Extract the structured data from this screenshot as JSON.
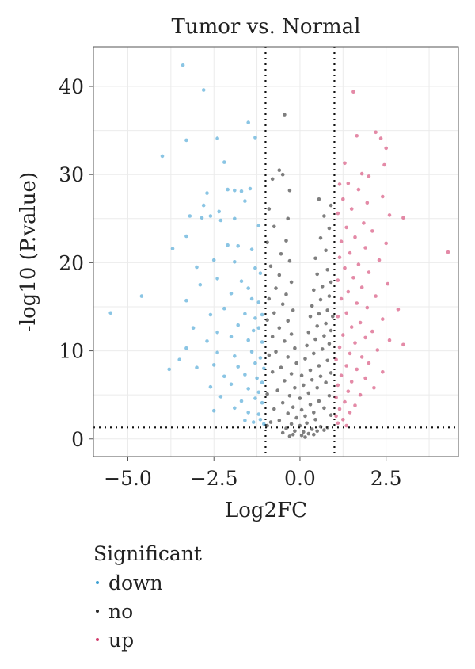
{
  "chart_data": {
    "type": "scatter",
    "title": "Tumor vs. Normal",
    "xlabel": "Log2FC",
    "ylabel": "-log10 (P.value)",
    "xlim": [
      -6.0,
      4.6
    ],
    "ylim": [
      -2.0,
      44.5
    ],
    "x_ticks": [
      -5.0,
      -2.5,
      0.0,
      2.5
    ],
    "x_tick_labels": [
      "−5.0",
      "−2.5",
      "0.0",
      "2.5"
    ],
    "y_ticks": [
      0,
      10,
      20,
      30,
      40
    ],
    "y_tick_labels": [
      "0",
      "10",
      "20",
      "30",
      "40"
    ],
    "grid": true,
    "thresholds": {
      "log2fc": [
        -1,
        1
      ],
      "neg_log10_p": 1.3
    },
    "legend": {
      "title": "Significant",
      "placement": "bottom-left",
      "entries": [
        {
          "label": "down",
          "color": "#3c9fd2"
        },
        {
          "label": "no",
          "color": "#2a2a2a"
        },
        {
          "label": "up",
          "color": "#d23c6c"
        }
      ]
    },
    "series": [
      {
        "name": "down",
        "color": "#3c9fd2",
        "points": [
          [
            -3.4,
            42.4
          ],
          [
            -2.8,
            39.6
          ],
          [
            -1.5,
            35.9
          ],
          [
            -2.4,
            34.1
          ],
          [
            -3.3,
            33.9
          ],
          [
            -1.3,
            34.2
          ],
          [
            -4.0,
            32.1
          ],
          [
            -2.2,
            31.4
          ],
          [
            -1.9,
            28.2
          ],
          [
            -2.1,
            28.3
          ],
          [
            -1.7,
            28.1
          ],
          [
            -1.45,
            28.4
          ],
          [
            -2.7,
            27.9
          ],
          [
            -1.6,
            27.0
          ],
          [
            -2.8,
            26.5
          ],
          [
            -2.35,
            25.8
          ],
          [
            -1.9,
            25.0
          ],
          [
            -2.85,
            25.1
          ],
          [
            -3.2,
            25.3
          ],
          [
            -2.6,
            25.3
          ],
          [
            -2.3,
            24.8
          ],
          [
            -1.2,
            24.2
          ],
          [
            -3.3,
            23.0
          ],
          [
            -3.7,
            21.6
          ],
          [
            -2.1,
            22.0
          ],
          [
            -1.8,
            21.9
          ],
          [
            -1.4,
            21.5
          ],
          [
            -3.0,
            19.5
          ],
          [
            -2.5,
            20.3
          ],
          [
            -1.9,
            20.1
          ],
          [
            -1.3,
            19.4
          ],
          [
            -1.15,
            18.8
          ],
          [
            -2.9,
            17.5
          ],
          [
            -2.4,
            18.2
          ],
          [
            -1.7,
            17.9
          ],
          [
            -1.5,
            17.1
          ],
          [
            -4.6,
            16.2
          ],
          [
            -3.3,
            15.7
          ],
          [
            -2.0,
            16.5
          ],
          [
            -1.4,
            15.9
          ],
          [
            -1.2,
            15.5
          ],
          [
            -5.5,
            14.3
          ],
          [
            -2.6,
            14.1
          ],
          [
            -2.2,
            14.8
          ],
          [
            -1.6,
            14.2
          ],
          [
            -1.3,
            13.7
          ],
          [
            -1.1,
            14.1
          ],
          [
            -3.1,
            12.6
          ],
          [
            -2.4,
            12.1
          ],
          [
            -1.8,
            12.9
          ],
          [
            -1.35,
            12.3
          ],
          [
            -1.2,
            12.6
          ],
          [
            -3.3,
            10.3
          ],
          [
            -2.7,
            11.1
          ],
          [
            -2.0,
            11.6
          ],
          [
            -1.5,
            11.2
          ],
          [
            -1.1,
            11.0
          ],
          [
            -3.5,
            9.0
          ],
          [
            -2.4,
            9.8
          ],
          [
            -1.9,
            9.4
          ],
          [
            -1.4,
            9.9
          ],
          [
            -1.15,
            9.2
          ],
          [
            -3.8,
            7.9
          ],
          [
            -3.0,
            8.1
          ],
          [
            -2.5,
            8.4
          ],
          [
            -1.8,
            8.2
          ],
          [
            -1.3,
            8.6
          ],
          [
            -1.05,
            8.0
          ],
          [
            -2.2,
            7.1
          ],
          [
            -1.6,
            7.3
          ],
          [
            -1.25,
            6.9
          ],
          [
            -1.1,
            6.4
          ],
          [
            -2.6,
            5.9
          ],
          [
            -2.0,
            6.2
          ],
          [
            -1.5,
            5.7
          ],
          [
            -1.2,
            5.3
          ],
          [
            -2.3,
            4.8
          ],
          [
            -1.7,
            4.3
          ],
          [
            -1.3,
            4.6
          ],
          [
            -1.1,
            4.1
          ],
          [
            -2.5,
            3.2
          ],
          [
            -1.9,
            3.5
          ],
          [
            -1.5,
            3.0
          ],
          [
            -1.2,
            2.8
          ],
          [
            -1.6,
            2.1
          ],
          [
            -1.15,
            2.2
          ],
          [
            -1.35,
            1.9
          ],
          [
            -1.05,
            1.7
          ]
        ]
      },
      {
        "name": "no",
        "color": "#2a2a2a",
        "points": [
          [
            -0.45,
            36.8
          ],
          [
            -0.6,
            30.5
          ],
          [
            -0.5,
            30.0
          ],
          [
            -0.8,
            29.5
          ],
          [
            -0.3,
            28.2
          ],
          [
            0.55,
            27.2
          ],
          [
            -0.9,
            26.1
          ],
          [
            -0.35,
            25.0
          ],
          [
            0.7,
            25.3
          ],
          [
            0.9,
            26.5
          ],
          [
            -0.75,
            24.1
          ],
          [
            -0.4,
            22.5
          ],
          [
            0.6,
            22.8
          ],
          [
            0.85,
            23.9
          ],
          [
            -0.95,
            22.3
          ],
          [
            -0.55,
            21.0
          ],
          [
            -0.3,
            20.2
          ],
          [
            0.45,
            20.5
          ],
          [
            0.75,
            21.4
          ],
          [
            -0.85,
            19.6
          ],
          [
            -0.6,
            18.6
          ],
          [
            -0.25,
            17.8
          ],
          [
            0.5,
            18.7
          ],
          [
            0.8,
            19.2
          ],
          [
            -0.7,
            17.1
          ],
          [
            -0.4,
            16.4
          ],
          [
            0.4,
            16.9
          ],
          [
            0.65,
            17.3
          ],
          [
            0.9,
            17.8
          ],
          [
            -0.9,
            15.9
          ],
          [
            -0.5,
            15.3
          ],
          [
            -0.2,
            14.6
          ],
          [
            0.35,
            15.1
          ],
          [
            0.6,
            15.8
          ],
          [
            0.85,
            16.2
          ],
          [
            -0.75,
            14.3
          ],
          [
            -0.35,
            13.4
          ],
          [
            0.3,
            13.9
          ],
          [
            0.55,
            14.2
          ],
          [
            0.8,
            14.6
          ],
          [
            -0.95,
            13.5
          ],
          [
            -0.6,
            12.6
          ],
          [
            -0.25,
            11.9
          ],
          [
            0.25,
            12.1
          ],
          [
            0.5,
            12.8
          ],
          [
            0.75,
            13.1
          ],
          [
            0.95,
            13.9
          ],
          [
            -0.8,
            11.6
          ],
          [
            -0.45,
            11.1
          ],
          [
            -0.15,
            10.3
          ],
          [
            0.2,
            10.6
          ],
          [
            0.45,
            11.3
          ],
          [
            0.7,
            11.7
          ],
          [
            0.9,
            12.3
          ],
          [
            -0.7,
            9.9
          ],
          [
            -0.35,
            9.3
          ],
          [
            -0.1,
            8.6
          ],
          [
            0.15,
            9.1
          ],
          [
            0.4,
            9.7
          ],
          [
            0.65,
            10.2
          ],
          [
            0.85,
            10.8
          ],
          [
            -0.9,
            9.5
          ],
          [
            -0.55,
            8.1
          ],
          [
            -0.25,
            7.4
          ],
          [
            0.05,
            7.2
          ],
          [
            0.3,
            7.8
          ],
          [
            0.55,
            8.3
          ],
          [
            0.8,
            8.9
          ],
          [
            -0.8,
            7.6
          ],
          [
            -0.45,
            6.6
          ],
          [
            -0.15,
            5.8
          ],
          [
            0.1,
            6.1
          ],
          [
            0.35,
            6.7
          ],
          [
            0.6,
            7.1
          ],
          [
            0.9,
            7.5
          ],
          [
            -0.65,
            5.5
          ],
          [
            -0.3,
            4.9
          ],
          [
            0.0,
            4.6
          ],
          [
            0.25,
            5.2
          ],
          [
            0.5,
            5.8
          ],
          [
            0.75,
            6.4
          ],
          [
            -0.95,
            5.1
          ],
          [
            -0.5,
            4.1
          ],
          [
            -0.2,
            3.6
          ],
          [
            0.05,
            3.3
          ],
          [
            0.3,
            3.9
          ],
          [
            0.55,
            4.3
          ],
          [
            0.85,
            4.9
          ],
          [
            -0.75,
            3.4
          ],
          [
            -0.35,
            2.9
          ],
          [
            -0.1,
            2.4
          ],
          [
            0.15,
            2.6
          ],
          [
            0.4,
            3.0
          ],
          [
            0.7,
            3.5
          ],
          [
            -0.6,
            2.1
          ],
          [
            -0.25,
            1.7
          ],
          [
            0.0,
            1.5
          ],
          [
            0.2,
            1.8
          ],
          [
            0.45,
            2.2
          ],
          [
            0.9,
            2.7
          ],
          [
            -0.85,
            1.9
          ],
          [
            -0.4,
            1.2
          ],
          [
            -0.15,
            0.9
          ],
          [
            0.1,
            0.8
          ],
          [
            0.35,
            1.1
          ],
          [
            0.6,
            1.4
          ],
          [
            -0.5,
            0.7
          ],
          [
            -0.2,
            0.5
          ],
          [
            0.05,
            0.4
          ],
          [
            0.25,
            0.6
          ],
          [
            0.5,
            0.9
          ],
          [
            0.8,
            1.3
          ],
          [
            -0.95,
            1.5
          ],
          [
            -0.3,
            0.3
          ],
          [
            0.15,
            0.2
          ],
          [
            0.4,
            0.5
          ],
          [
            0.7,
            1.0
          ]
        ]
      },
      {
        "name": "up",
        "color": "#d23c6c",
        "points": [
          [
            1.55,
            39.4
          ],
          [
            2.2,
            34.8
          ],
          [
            1.65,
            34.4
          ],
          [
            2.35,
            34.1
          ],
          [
            2.5,
            33.0
          ],
          [
            1.3,
            31.3
          ],
          [
            2.45,
            31.1
          ],
          [
            1.8,
            30.1
          ],
          [
            2.0,
            29.8
          ],
          [
            1.4,
            29.0
          ],
          [
            1.15,
            28.9
          ],
          [
            1.7,
            28.3
          ],
          [
            2.4,
            27.5
          ],
          [
            1.25,
            27.2
          ],
          [
            1.95,
            26.8
          ],
          [
            1.5,
            26.1
          ],
          [
            2.6,
            25.4
          ],
          [
            3.0,
            25.1
          ],
          [
            1.1,
            25.6
          ],
          [
            1.85,
            24.5
          ],
          [
            1.35,
            24.0
          ],
          [
            2.1,
            23.6
          ],
          [
            1.6,
            22.9
          ],
          [
            1.2,
            22.4
          ],
          [
            2.5,
            22.2
          ],
          [
            1.9,
            21.7
          ],
          [
            1.45,
            21.1
          ],
          [
            4.3,
            21.2
          ],
          [
            1.15,
            20.6
          ],
          [
            2.3,
            20.3
          ],
          [
            1.7,
            19.8
          ],
          [
            1.3,
            19.4
          ],
          [
            2.0,
            18.9
          ],
          [
            1.55,
            18.3
          ],
          [
            1.1,
            18.0
          ],
          [
            2.55,
            17.6
          ],
          [
            1.8,
            17.2
          ],
          [
            1.4,
            16.7
          ],
          [
            2.2,
            16.2
          ],
          [
            1.2,
            15.9
          ],
          [
            1.65,
            15.4
          ],
          [
            1.95,
            14.9
          ],
          [
            2.85,
            14.7
          ],
          [
            1.35,
            14.3
          ],
          [
            1.1,
            13.9
          ],
          [
            2.4,
            13.6
          ],
          [
            1.75,
            13.2
          ],
          [
            1.5,
            12.7
          ],
          [
            2.1,
            12.2
          ],
          [
            1.25,
            11.8
          ],
          [
            1.9,
            11.5
          ],
          [
            2.6,
            11.2
          ],
          [
            1.6,
            10.9
          ],
          [
            3.0,
            10.7
          ],
          [
            1.15,
            10.4
          ],
          [
            2.25,
            10.1
          ],
          [
            1.45,
            9.7
          ],
          [
            1.8,
            9.3
          ],
          [
            1.05,
            9.0
          ],
          [
            2.0,
            8.6
          ],
          [
            1.35,
            8.3
          ],
          [
            1.65,
            7.9
          ],
          [
            2.4,
            7.6
          ],
          [
            1.2,
            7.2
          ],
          [
            1.9,
            6.9
          ],
          [
            1.5,
            6.5
          ],
          [
            1.1,
            6.1
          ],
          [
            2.15,
            5.8
          ],
          [
            1.4,
            5.4
          ],
          [
            1.75,
            5.0
          ],
          [
            1.05,
            4.7
          ],
          [
            1.3,
            4.2
          ],
          [
            1.6,
            3.8
          ],
          [
            1.15,
            3.4
          ],
          [
            1.45,
            3.0
          ],
          [
            1.05,
            2.6
          ],
          [
            1.25,
            2.2
          ],
          [
            1.1,
            1.8
          ],
          [
            1.35,
            1.5
          ]
        ]
      }
    ]
  }
}
